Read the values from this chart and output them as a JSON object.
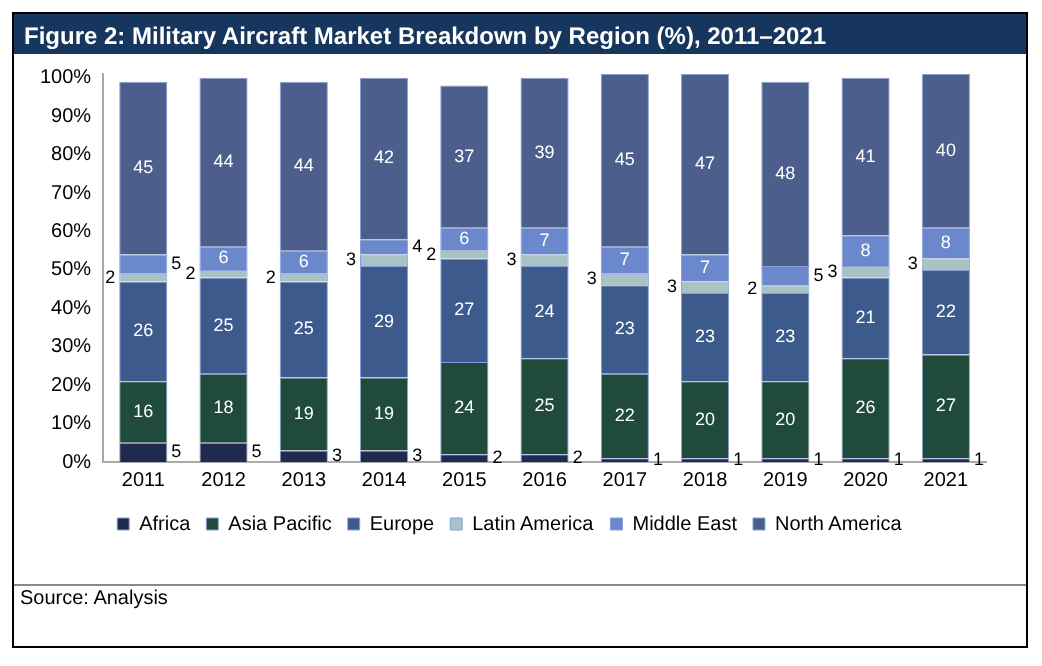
{
  "chart_data": {
    "type": "bar",
    "stacked": true,
    "title": "Figure 2: Military Aircraft Market Breakdown by Region (%), 2011–2021",
    "categories": [
      "2011",
      "2012",
      "2013",
      "2014",
      "2015",
      "2016",
      "2017",
      "2018",
      "2019",
      "2020",
      "2021"
    ],
    "series": [
      {
        "name": "Africa",
        "color": "#1e2a4e",
        "values": [
          5,
          5,
          3,
          3,
          2,
          2,
          1,
          1,
          1,
          1,
          1
        ]
      },
      {
        "name": "Asia Pacific",
        "color": "#1f4a3c",
        "values": [
          16,
          18,
          19,
          19,
          24,
          25,
          22,
          20,
          20,
          26,
          27
        ]
      },
      {
        "name": "Europe",
        "color": "#3c5a8c",
        "values": [
          26,
          25,
          25,
          29,
          27,
          24,
          23,
          23,
          23,
          21,
          22
        ]
      },
      {
        "name": "Latin America",
        "color": "#a9c2c4",
        "values": [
          2,
          2,
          2,
          3,
          2,
          3,
          3,
          3,
          2,
          3,
          3
        ]
      },
      {
        "name": "Middle East",
        "color": "#6b88cc",
        "values": [
          5,
          6,
          6,
          4,
          6,
          7,
          7,
          7,
          5,
          8,
          8
        ]
      },
      {
        "name": "North America",
        "color": "#4b5e8c",
        "values": [
          45,
          44,
          44,
          42,
          37,
          39,
          45,
          47,
          48,
          41,
          40
        ]
      }
    ],
    "ylim": [
      0,
      101
    ],
    "yticks": [
      {
        "value": 0,
        "label": "0%"
      },
      {
        "value": 10,
        "label": "10%"
      },
      {
        "value": 20,
        "label": "20%"
      },
      {
        "value": 30,
        "label": "30%"
      },
      {
        "value": 40,
        "label": "40%"
      },
      {
        "value": 50,
        "label": "50%"
      },
      {
        "value": 60,
        "label": "60%"
      },
      {
        "value": 70,
        "label": "70%"
      },
      {
        "value": 80,
        "label": "80%"
      },
      {
        "value": 90,
        "label": "90%"
      },
      {
        "value": 100,
        "label": "100%"
      }
    ],
    "grid": false,
    "legend": "bottom",
    "data_labels": true,
    "annotations": [
      "Source: Analysis"
    ]
  }
}
